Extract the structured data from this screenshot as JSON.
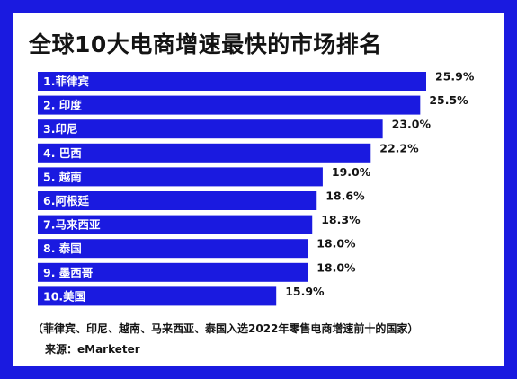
{
  "chart_data": {
    "type": "bar",
    "orientation": "horizontal",
    "title": "全球10大电商增速最快的市场排名",
    "categories": [
      "1.菲律宾",
      "2. 印度",
      "3.印尼",
      "4. 巴西",
      "5. 越南",
      "6.阿根廷",
      "7.马来西亚",
      "8. 泰国",
      "9. 墨西哥",
      "10.美国"
    ],
    "values": [
      25.9,
      25.5,
      23.0,
      22.2,
      19.0,
      18.6,
      18.3,
      18.0,
      18.0,
      15.9
    ],
    "value_labels": [
      "25.9%",
      "25.5%",
      "23.0%",
      "22.2%",
      "19.0%",
      "18.6%",
      "18.3%",
      "18.0%",
      "18.0%",
      "15.9%"
    ],
    "unit": "%",
    "bar_color": "#1a1ae0",
    "xlim": [
      0,
      25.9
    ],
    "grid": false,
    "legend": "none"
  },
  "footnote": "（菲律宾、印尼、越南、马来西亚、泰国入选2022年零售电商增速前十的国家）",
  "source": "来源：eMarketer",
  "colors": {
    "accent": "#1a1ae0",
    "text": "#141414",
    "background": "#ffffff"
  }
}
